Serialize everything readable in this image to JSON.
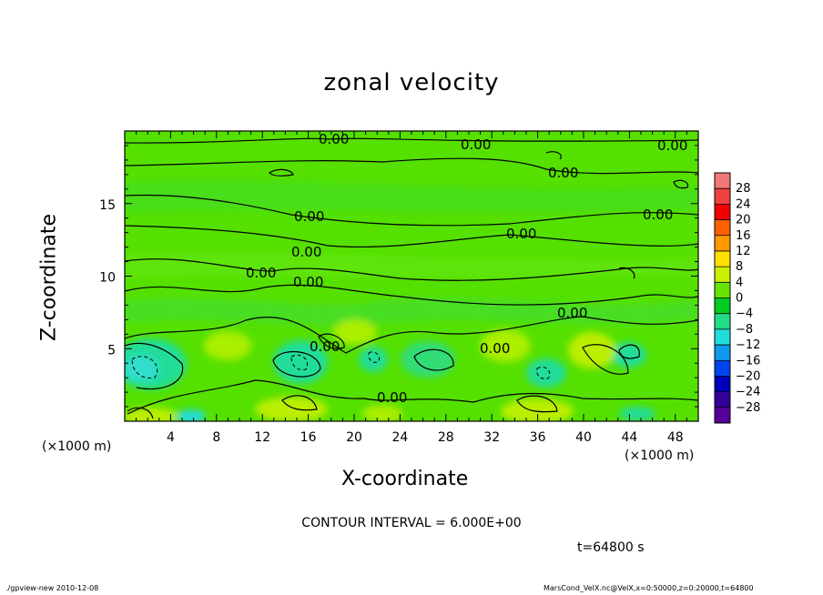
{
  "chart_data": {
    "type": "heatmap",
    "title": "zonal velocity",
    "xlabel": "X-coordinate",
    "ylabel": "Z-coordinate",
    "x_unit_left": "(×1000 m)",
    "x_unit_right": "(×1000 m)",
    "xlim": [
      0,
      50
    ],
    "ylim": [
      0,
      20
    ],
    "x_ticks": [
      4,
      8,
      12,
      16,
      20,
      24,
      28,
      32,
      36,
      40,
      44,
      48
    ],
    "y_ticks": [
      5,
      10,
      15
    ],
    "colorbar": {
      "levels": [
        28,
        24,
        20,
        16,
        12,
        8,
        4,
        0,
        -4,
        -8,
        -12,
        -16,
        -20,
        -24,
        -28
      ],
      "level_labels": [
        "28",
        "24",
        "20",
        "16",
        "12",
        "8",
        "4",
        "0",
        "−4",
        "−8",
        "−12",
        "−16",
        "−20",
        "−24",
        "−28"
      ],
      "colors": [
        "#f07878",
        "#f04040",
        "#f00000",
        "#ff6000",
        "#ff9900",
        "#ffe000",
        "#ccee00",
        "#66e400",
        "#00cc22",
        "#22dd88",
        "#22dddd",
        "#1199ee",
        "#0044ee",
        "#0000bb",
        "#330099",
        "#550099"
      ]
    },
    "contour_value_label": "0.00",
    "contour_interval": "CONTOUR INTERVAL = 6.000E+00",
    "time": "t=64800 s",
    "grid": false,
    "legend": "right"
  },
  "footer": {
    "left": "./gpview-new   2010-12-08",
    "right": "MarsCond_VelX.nc@VelX,x=0:50000,z=0:20000,t=64800"
  }
}
